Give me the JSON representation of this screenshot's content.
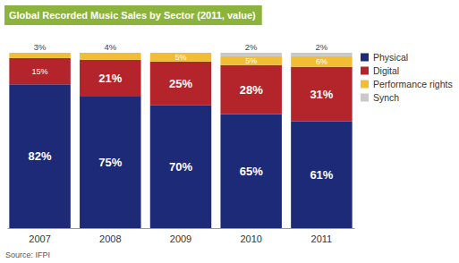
{
  "chart_data": {
    "type": "bar",
    "title": "Global Recorded Music Sales by Sector (2011, value)",
    "source": "Source: IFPI",
    "categories": [
      "2007",
      "2008",
      "2009",
      "2010",
      "2011"
    ],
    "series": [
      {
        "name": "Physical",
        "color": "#1c2a78",
        "values": [
          82,
          75,
          70,
          65,
          61
        ],
        "value_labels": [
          "82%",
          "75%",
          "70%",
          "65%",
          "61%"
        ]
      },
      {
        "name": "Digital",
        "color": "#b3242b",
        "values": [
          15,
          21,
          25,
          28,
          31
        ],
        "value_labels": [
          "15%",
          "21%",
          "25%",
          "28%",
          "31%"
        ]
      },
      {
        "name": "Performance rights",
        "color": "#f0bd35",
        "values": [
          3,
          4,
          5,
          5,
          6
        ],
        "value_labels": [
          "3%",
          "4%",
          "5%",
          "5%",
          "6%"
        ]
      },
      {
        "name": "Synch",
        "color": "#c9c9c9",
        "values": [
          null,
          null,
          null,
          2,
          2
        ],
        "value_labels": [
          null,
          null,
          null,
          "2%",
          "2%"
        ]
      }
    ],
    "ylim": [
      0,
      100
    ],
    "stacked": true,
    "data_labels": true,
    "legend": "right",
    "tick_labels": "x"
  }
}
